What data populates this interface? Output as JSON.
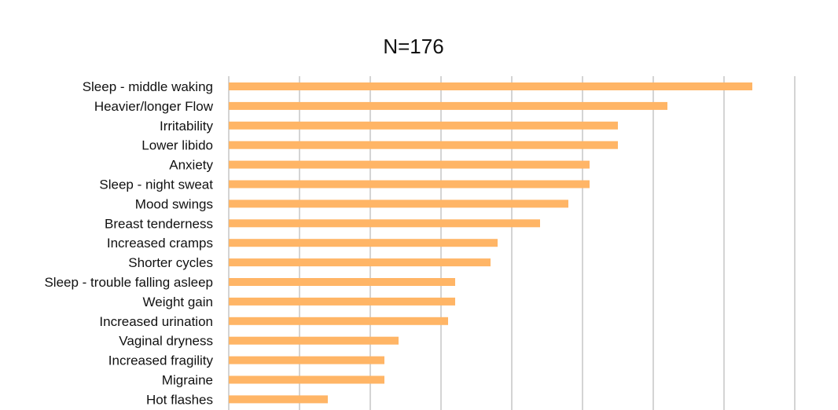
{
  "chart_data": {
    "type": "bar",
    "orientation": "horizontal",
    "title": "N=176",
    "xlabel": "",
    "ylabel": "",
    "xlim": [
      0,
      40
    ],
    "grid": true,
    "bar_color": "#ffb566",
    "categories": [
      "Sleep - middle waking",
      "Heavier/longer Flow",
      "Irritability",
      "Lower libido",
      "Anxiety",
      "Sleep - night sweat",
      "Mood swings",
      "Breast tenderness",
      "Increased cramps",
      "Shorter cycles",
      "Sleep - trouble falling asleep",
      "Weight gain",
      "Increased urination",
      "Vaginal dryness",
      "Increased fragility",
      "Migraine",
      "Hot flashes"
    ],
    "values": [
      37,
      31,
      27.5,
      27.5,
      25.5,
      25.5,
      24,
      22,
      19,
      18.5,
      16,
      16,
      15.5,
      12,
      11,
      11,
      7
    ]
  }
}
